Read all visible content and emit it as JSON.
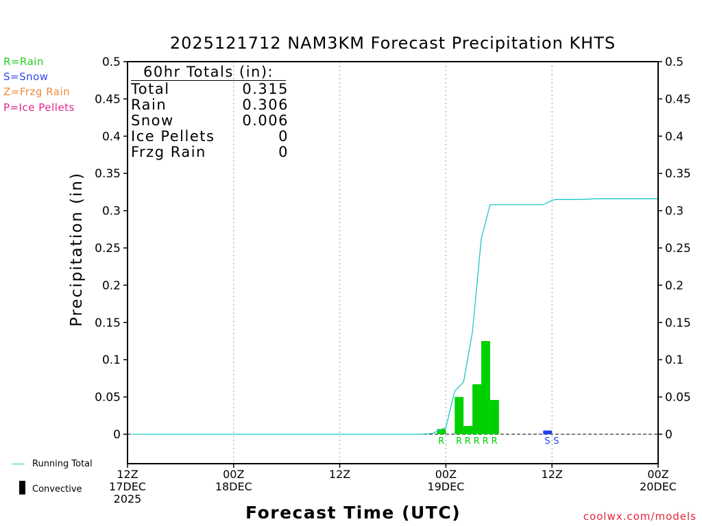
{
  "title": "2025121712 NAM3KM Forecast Precipitation KHTS",
  "type_legend": [
    {
      "label": "R=Rain",
      "color": "#22cc22"
    },
    {
      "label": "S=Snow",
      "color": "#3344ee"
    },
    {
      "label": "Z=Frzg Rain",
      "color": "#f08a3a"
    },
    {
      "label": "P=Ice Pellets",
      "color": "#e0238a"
    }
  ],
  "totals_box": {
    "header": "60hr Totals (in):",
    "rows": [
      {
        "label": "Total",
        "value": "0.315"
      },
      {
        "label": "Rain",
        "value": "0.306"
      },
      {
        "label": "Snow",
        "value": "0.006"
      },
      {
        "label": "Ice Pellets",
        "value": "0"
      },
      {
        "label": "Frzg Rain",
        "value": "0"
      }
    ]
  },
  "bottom_legend": {
    "running_total": "Running Total",
    "convective": "Convective"
  },
  "credit": "coolwx.com/models",
  "colors": {
    "rain": "#00d000",
    "snow": "#2040f0",
    "running_total": "#1cc6c6"
  },
  "chart_data": {
    "type": "bar",
    "title": "2025121712 NAM3KM Forecast Precipitation KHTS",
    "xlabel": "Forecast Time (UTC)",
    "ylabel": "Precipitation (in)",
    "xlim": [
      0,
      60
    ],
    "ylim": [
      -0.04,
      0.5
    ],
    "yticks": [
      0,
      0.05,
      0.1,
      0.15,
      0.2,
      0.25,
      0.3,
      0.35,
      0.4,
      0.45,
      0.5
    ],
    "ytick_labels": [
      "0",
      "0.05",
      "0.1",
      "0.15",
      "0.2",
      "0.25",
      "0.3",
      "0.35",
      "0.4",
      "0.45",
      "0.5"
    ],
    "xticks": [
      {
        "hour": 0,
        "lines": [
          "12Z",
          "17DEC",
          "2025"
        ]
      },
      {
        "hour": 12,
        "lines": [
          "00Z",
          "18DEC"
        ]
      },
      {
        "hour": 24,
        "lines": [
          "12Z"
        ]
      },
      {
        "hour": 36,
        "lines": [
          "00Z",
          "19DEC"
        ]
      },
      {
        "hour": 48,
        "lines": [
          "12Z"
        ]
      },
      {
        "hour": 60,
        "lines": [
          "00Z",
          "20DEC"
        ]
      }
    ],
    "bar_width_hours": 1,
    "bars": [
      {
        "hour_start": 35,
        "value": 0.007,
        "type": "R"
      },
      {
        "hour_start": 37,
        "value": 0.05,
        "type": "R"
      },
      {
        "hour_start": 38,
        "value": 0.011,
        "type": "R"
      },
      {
        "hour_start": 39,
        "value": 0.067,
        "type": "R"
      },
      {
        "hour_start": 40,
        "value": 0.125,
        "type": "R"
      },
      {
        "hour_start": 41,
        "value": 0.046,
        "type": "R"
      },
      {
        "hour_start": 47,
        "value": 0.005,
        "type": "S"
      }
    ],
    "type_markers": [
      {
        "hour": 35.5,
        "label": "R"
      },
      {
        "hour": 37.5,
        "label": "R"
      },
      {
        "hour": 38.5,
        "label": "R"
      },
      {
        "hour": 39.5,
        "label": "R"
      },
      {
        "hour": 40.5,
        "label": "R"
      },
      {
        "hour": 41.5,
        "label": "R"
      },
      {
        "hour": 47.5,
        "label": "S"
      },
      {
        "hour": 48.5,
        "label": "S"
      }
    ],
    "running_total": {
      "x": [
        0.5,
        33,
        34.5,
        35,
        36,
        37,
        38,
        39,
        40,
        41,
        47,
        48,
        48.5,
        51,
        53,
        60
      ],
      "y": [
        0,
        0,
        0.001,
        0.004,
        0.009,
        0.058,
        0.07,
        0.137,
        0.262,
        0.308,
        0.308,
        0.314,
        0.315,
        0.315,
        0.316,
        0.316
      ]
    }
  }
}
